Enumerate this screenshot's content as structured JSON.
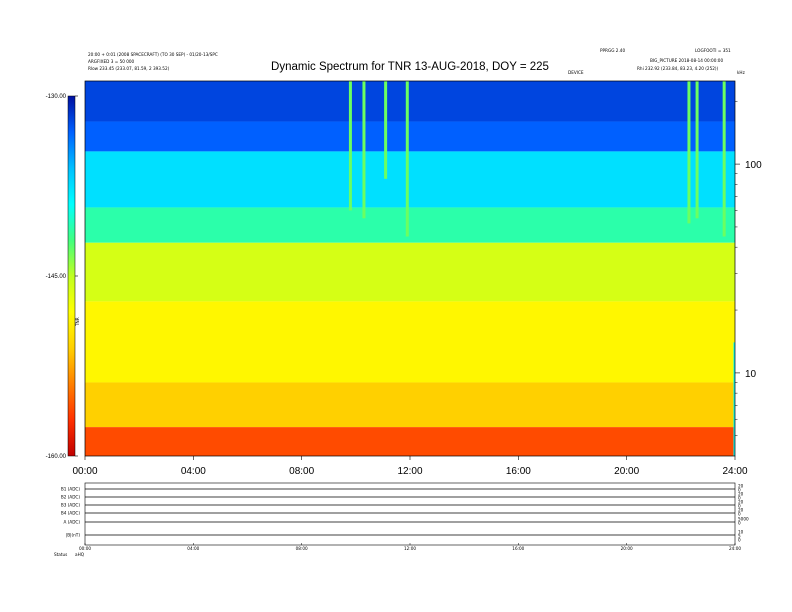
{
  "header": {
    "title": "Dynamic Spectrum for TNR 13-AUG-2018, DOY = 225",
    "left_line1": "20:00 + 0:01 (2008 SPACECRAFT) (TO 30 SEP) - 01/20-13/SPC",
    "left_line2": "ARGFIXED 3 = 50 000",
    "left_line3": "Rlow  233.45 (233.07, 81.59, 2 393.52)",
    "right_line1": "PPRGG 2.40",
    "right_line2": "LOGFOOTI = 351",
    "right_line3": "BIG_PICTURE 2018-08-14 00:00:00",
    "right_line4": "Rhi  232.92 (233.84, 83.23, 4.20 (252))",
    "center_tag": "DEVICE",
    "corner_tag": "kHz"
  },
  "chart_data": {
    "type": "heatmap",
    "title": "Dynamic Spectrum for TNR 13-AUG-2018, DOY = 225",
    "xlabel": "",
    "ylabel": "",
    "x_ticks": [
      "00:00",
      "04:00",
      "08:00",
      "12:00",
      "16:00",
      "20:00",
      "24:00"
    ],
    "x_range_hours": [
      0,
      24
    ],
    "y_scale": "log",
    "y_range_khz": [
      4,
      250
    ],
    "y_ticks": [
      10,
      100
    ],
    "y_tick_labels": [
      "10",
      "100"
    ],
    "colorbar": {
      "min": -160,
      "max": -130,
      "ticks": [
        -130,
        -145,
        -160
      ],
      "tick_labels": [
        "-130.00",
        "-145.00",
        "-160.00"
      ],
      "label": "TNR",
      "colormap": [
        "#c00000",
        "#ff3000",
        "#ff8000",
        "#ffd000",
        "#ffff00",
        "#c0ff20",
        "#40ff80",
        "#00ffff",
        "#00c0ff",
        "#0060ff",
        "#0010a0"
      ]
    },
    "bands": [
      {
        "f_low": 160,
        "f_high": 250,
        "level": -132
      },
      {
        "f_low": 115,
        "f_high": 160,
        "level": -133
      },
      {
        "f_low": 62,
        "f_high": 115,
        "level": -137.5
      },
      {
        "f_low": 42,
        "f_high": 62,
        "level": -141
      },
      {
        "f_low": 22,
        "f_high": 42,
        "level": -146
      },
      {
        "f_low": 9,
        "f_high": 22,
        "level": -148.5
      },
      {
        "f_low": 5.5,
        "f_high": 9,
        "level": -151
      },
      {
        "f_low": 4,
        "f_high": 5.5,
        "level": -156
      }
    ],
    "bursts": [
      {
        "t": 9.8,
        "f_low": 60,
        "f_high": 250
      },
      {
        "t": 10.3,
        "f_low": 55,
        "f_high": 250
      },
      {
        "t": 11.1,
        "f_low": 85,
        "f_high": 250
      },
      {
        "t": 11.9,
        "f_low": 45,
        "f_high": 250
      },
      {
        "t": 22.3,
        "f_low": 52,
        "f_high": 250
      },
      {
        "t": 22.6,
        "f_low": 55,
        "f_high": 250
      },
      {
        "t": 23.6,
        "f_low": 45,
        "f_high": 250
      },
      {
        "t": 24.0,
        "f_low": 4,
        "f_high": 14
      }
    ]
  },
  "lower_panel": {
    "rows": [
      {
        "label": "B1 (ADC)",
        "right_ticks": [
          "20",
          "0"
        ]
      },
      {
        "label": "B2 (ADC)",
        "right_ticks": [
          "20",
          "0"
        ]
      },
      {
        "label": "B3 (ADC)",
        "right_ticks": [
          "20",
          "0"
        ]
      },
      {
        "label": "B4 (ADC)",
        "right_ticks": [
          "20",
          "0"
        ]
      },
      {
        "label": "A (ADC)",
        "right_ticks": [
          "5000",
          "0"
        ]
      },
      {
        "label": "|B|(nT)",
        "right_ticks": [
          "10",
          "5",
          "0"
        ]
      }
    ],
    "x_ticks": [
      "00:00",
      "04:00",
      "08:00",
      "12:00",
      "16:00",
      "20:00",
      "24:00"
    ],
    "status_label": "Status",
    "status_value": "aHQ"
  }
}
